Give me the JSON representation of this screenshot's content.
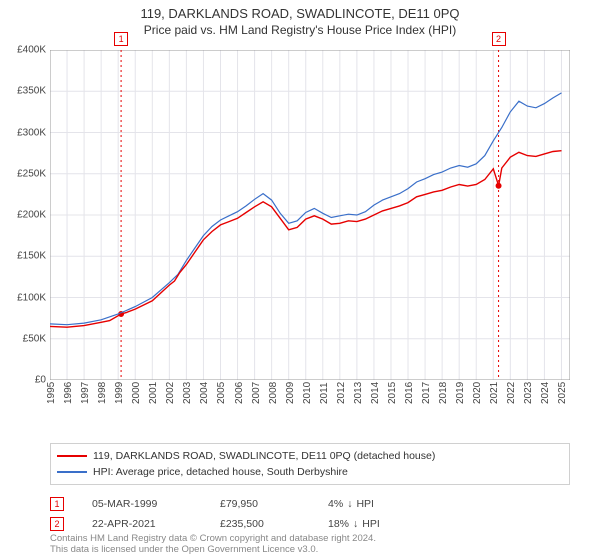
{
  "title1": "119, DARKLANDS ROAD, SWADLINCOTE, DE11 0PQ",
  "title2": "Price paid vs. HM Land Registry's House Price Index (HPI)",
  "chart": {
    "type": "line",
    "background_color": "#ffffff",
    "plot_area_bg": "#f2f2f4",
    "grid_color": "#e4e4ea",
    "x_range": [
      1995,
      2025.5
    ],
    "y_range": [
      0,
      400000
    ],
    "y_ticks": [
      0,
      50000,
      100000,
      150000,
      200000,
      250000,
      300000,
      350000,
      400000
    ],
    "y_tick_labels": [
      "£0",
      "£50K",
      "£100K",
      "£150K",
      "£200K",
      "£250K",
      "£300K",
      "£350K",
      "£400K"
    ],
    "x_ticks": [
      1995,
      1996,
      1997,
      1998,
      1999,
      2000,
      2001,
      2002,
      2003,
      2004,
      2005,
      2006,
      2007,
      2008,
      2009,
      2010,
      2011,
      2012,
      2013,
      2014,
      2015,
      2016,
      2017,
      2018,
      2019,
      2020,
      2021,
      2022,
      2023,
      2024,
      2025
    ],
    "x_tick_labels": [
      "1995",
      "1996",
      "1997",
      "1998",
      "1999",
      "2000",
      "2001",
      "2002",
      "2003",
      "2004",
      "2005",
      "2006",
      "2007",
      "2008",
      "2009",
      "2010",
      "2011",
      "2012",
      "2013",
      "2014",
      "2015",
      "2016",
      "2017",
      "2018",
      "2019",
      "2020",
      "2021",
      "2022",
      "2023",
      "2024",
      "2025"
    ],
    "series": [
      {
        "name": "price_paid",
        "label": "119, DARKLANDS ROAD, SWADLINCOTE, DE11 0PQ (detached house)",
        "color": "#e60000",
        "line_width": 1.4,
        "points": [
          [
            1995,
            65000
          ],
          [
            1996,
            64000
          ],
          [
            1997,
            66000
          ],
          [
            1998,
            70000
          ],
          [
            1998.5,
            72000
          ],
          [
            1999.17,
            79950
          ],
          [
            1999.5,
            82000
          ],
          [
            2000,
            86000
          ],
          [
            2001,
            96000
          ],
          [
            2002,
            115000
          ],
          [
            2002.3,
            120000
          ],
          [
            2002.6,
            130000
          ],
          [
            2003,
            140000
          ],
          [
            2003.5,
            155000
          ],
          [
            2004,
            170000
          ],
          [
            2004.5,
            180000
          ],
          [
            2005,
            188000
          ],
          [
            2005.5,
            192000
          ],
          [
            2006,
            196000
          ],
          [
            2006.5,
            203000
          ],
          [
            2007,
            210000
          ],
          [
            2007.5,
            216000
          ],
          [
            2008,
            210000
          ],
          [
            2008.5,
            196000
          ],
          [
            2009,
            182000
          ],
          [
            2009.5,
            185000
          ],
          [
            2010,
            195000
          ],
          [
            2010.5,
            199000
          ],
          [
            2011,
            195000
          ],
          [
            2011.5,
            189000
          ],
          [
            2012,
            190000
          ],
          [
            2012.5,
            193000
          ],
          [
            2013,
            192000
          ],
          [
            2013.5,
            195000
          ],
          [
            2014,
            200000
          ],
          [
            2014.5,
            205000
          ],
          [
            2015,
            208000
          ],
          [
            2015.5,
            211000
          ],
          [
            2016,
            215000
          ],
          [
            2016.5,
            222000
          ],
          [
            2017,
            225000
          ],
          [
            2017.5,
            228000
          ],
          [
            2018,
            230000
          ],
          [
            2018.5,
            234000
          ],
          [
            2019,
            237000
          ],
          [
            2019.5,
            235000
          ],
          [
            2020,
            237000
          ],
          [
            2020.5,
            243000
          ],
          [
            2021,
            256000
          ],
          [
            2021.31,
            235500
          ],
          [
            2021.5,
            257000
          ],
          [
            2022,
            270000
          ],
          [
            2022.5,
            276000
          ],
          [
            2023,
            272000
          ],
          [
            2023.5,
            271000
          ],
          [
            2024,
            274000
          ],
          [
            2024.5,
            277000
          ],
          [
            2025,
            278000
          ]
        ]
      },
      {
        "name": "hpi",
        "label": "HPI: Average price, detached house, South Derbyshire",
        "color": "#3a6fc9",
        "line_width": 1.2,
        "points": [
          [
            1995,
            68000
          ],
          [
            1996,
            67000
          ],
          [
            1997,
            69000
          ],
          [
            1998,
            73000
          ],
          [
            1999,
            80000
          ],
          [
            2000,
            89000
          ],
          [
            2001,
            100000
          ],
          [
            2002,
            118000
          ],
          [
            2002.5,
            128000
          ],
          [
            2003,
            145000
          ],
          [
            2003.5,
            160000
          ],
          [
            2004,
            175000
          ],
          [
            2004.5,
            186000
          ],
          [
            2005,
            194000
          ],
          [
            2005.5,
            199000
          ],
          [
            2006,
            204000
          ],
          [
            2006.5,
            211000
          ],
          [
            2007,
            219000
          ],
          [
            2007.5,
            226000
          ],
          [
            2008,
            218000
          ],
          [
            2008.5,
            202000
          ],
          [
            2009,
            190000
          ],
          [
            2009.5,
            193000
          ],
          [
            2010,
            203000
          ],
          [
            2010.5,
            208000
          ],
          [
            2011,
            202000
          ],
          [
            2011.5,
            197000
          ],
          [
            2012,
            199000
          ],
          [
            2012.5,
            201000
          ],
          [
            2013,
            200000
          ],
          [
            2013.5,
            204000
          ],
          [
            2014,
            212000
          ],
          [
            2014.5,
            218000
          ],
          [
            2015,
            222000
          ],
          [
            2015.5,
            226000
          ],
          [
            2016,
            232000
          ],
          [
            2016.5,
            240000
          ],
          [
            2017,
            244000
          ],
          [
            2017.5,
            249000
          ],
          [
            2018,
            252000
          ],
          [
            2018.5,
            257000
          ],
          [
            2019,
            260000
          ],
          [
            2019.5,
            258000
          ],
          [
            2020,
            262000
          ],
          [
            2020.5,
            272000
          ],
          [
            2021,
            290000
          ],
          [
            2021.5,
            306000
          ],
          [
            2022,
            325000
          ],
          [
            2022.5,
            338000
          ],
          [
            2023,
            332000
          ],
          [
            2023.5,
            330000
          ],
          [
            2024,
            335000
          ],
          [
            2024.5,
            342000
          ],
          [
            2025,
            348000
          ]
        ]
      }
    ],
    "sale_markers": [
      {
        "n": "1",
        "x": 1999.17,
        "y": 79950,
        "date": "05-MAR-1999",
        "price": "£79,950",
        "pct": "4%",
        "dir": "↓",
        "color": "#e60000"
      },
      {
        "n": "2",
        "x": 2021.31,
        "y": 235500,
        "date": "22-APR-2021",
        "price": "£235,500",
        "pct": "18%",
        "dir": "↓",
        "color": "#e60000"
      }
    ],
    "sale_line_color": "#e60000",
    "sale_line_dash": "2,3"
  },
  "hpi_suffix": "HPI",
  "footer_line1": "Contains HM Land Registry data © Crown copyright and database right 2024.",
  "footer_line2": "This data is licensed under the Open Government Licence v3.0."
}
